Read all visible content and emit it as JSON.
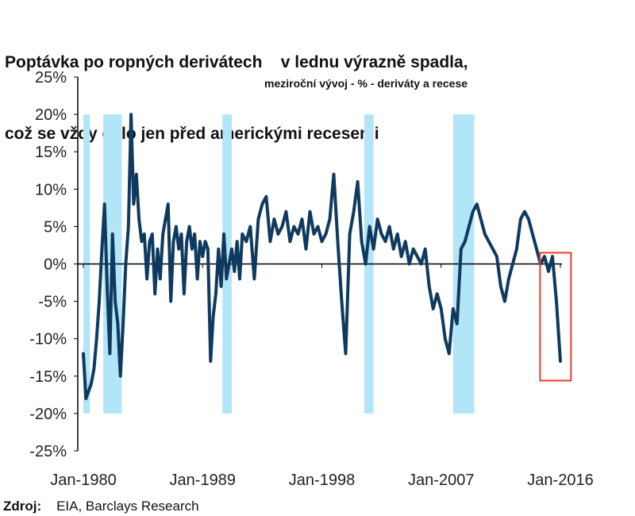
{
  "title_line1": "Poptávka po ropných derivátech    v lednu výrazně spadla,",
  "title_line2": "což se vždy dělo jen před americkými recesemi",
  "source_label": "Zdroj:",
  "source_text": "EIA, Barclays Research",
  "colors": {
    "line": "#0f3a5f",
    "recession": "#b3e5f8",
    "highlight_box": "#e8402a",
    "axis": "#000000"
  },
  "chart_data": {
    "type": "line",
    "title": "Poptávka po ropných derivátech v lednu výrazně spadla, což se vždy dělo jen před americkými recesemi",
    "annotation": "meziroční vývoj - % - deriváty  a recese",
    "xlabel": "",
    "ylabel": "",
    "ylim": [
      -25,
      25
    ],
    "yticks": [
      25,
      20,
      15,
      10,
      5,
      0,
      -5,
      -10,
      -15,
      -20,
      -25
    ],
    "ytick_labels": [
      "25%",
      "20%",
      "15%",
      "10%",
      "5%",
      "0%",
      "-5%",
      "-10%",
      "-15%",
      "-20%",
      "-25%"
    ],
    "xlim": [
      1979.95,
      2016.3
    ],
    "xticks": [
      1980,
      1989,
      1998,
      2007,
      2016
    ],
    "xtick_labels": [
      "Jan-1980",
      "Jan-1989",
      "Jan-1998",
      "Jan-2007",
      "Jan-2016"
    ],
    "grid": false,
    "legend": "none",
    "recessions": [
      [
        1980.0,
        1980.5
      ],
      [
        1981.5,
        1982.9
      ],
      [
        1990.5,
        1991.2
      ],
      [
        2001.2,
        2001.9
      ],
      [
        2007.9,
        2009.5
      ]
    ],
    "highlight_range": {
      "x": [
        2015.9,
        2018.1
      ],
      "y": [
        -15.6,
        1.5
      ]
    },
    "series": [
      {
        "x": [
          1980.0,
          1980.2,
          1980.4,
          1980.6,
          1980.8,
          1981.0,
          1981.2,
          1981.4,
          1981.6,
          1981.8,
          1982.0,
          1982.2,
          1982.4,
          1982.6,
          1982.8,
          1983.0,
          1983.2,
          1983.4,
          1983.6,
          1983.8,
          1984.0,
          1984.2,
          1984.4,
          1984.6,
          1984.8,
          1985.0,
          1985.2,
          1985.4,
          1985.6,
          1985.8,
          1986.0,
          1986.2,
          1986.4,
          1986.6,
          1986.8,
          1987.0,
          1987.2,
          1987.4,
          1987.6,
          1987.8,
          1988.0,
          1988.2,
          1988.4,
          1988.6,
          1988.8,
          1989.0,
          1989.2,
          1989.4,
          1989.6,
          1989.8,
          1990.0,
          1990.2,
          1990.4,
          1990.6,
          1990.8,
          1991.0,
          1991.2,
          1991.4,
          1991.6,
          1991.8,
          1992.0,
          1992.3,
          1992.6,
          1992.9,
          1993.2,
          1993.5,
          1993.8,
          1994.1,
          1994.4,
          1994.7,
          1995.0,
          1995.3,
          1995.6,
          1995.9,
          1996.2,
          1996.5,
          1996.8,
          1997.1,
          1997.4,
          1997.7,
          1998.0,
          1998.3,
          1998.6,
          1998.9,
          1999.2,
          1999.5,
          1999.8,
          2000.1,
          2000.4,
          2000.7,
          2001.0,
          2001.3,
          2001.6,
          2001.9,
          2002.2,
          2002.5,
          2002.8,
          2003.1,
          2003.4,
          2003.7,
          2004.0,
          2004.3,
          2004.6,
          2004.9,
          2005.2,
          2005.5,
          2005.8,
          2006.1,
          2006.4,
          2006.7,
          2007.0,
          2007.3,
          2007.6,
          2007.9,
          2008.2,
          2008.5,
          2008.8,
          2009.1,
          2009.4,
          2009.7,
          2010.0,
          2010.3,
          2010.6,
          2010.9,
          2011.2,
          2011.5,
          2011.8,
          2012.1,
          2012.4,
          2012.7,
          2013.0,
          2013.3,
          2013.6,
          2013.9,
          2014.2,
          2014.5,
          2014.8,
          2015.1,
          2015.4,
          2015.7,
          2016.0
        ],
        "values": [
          -12,
          -18,
          -17,
          -16,
          -14,
          -10,
          -5,
          2,
          8,
          -3,
          -12,
          4,
          -5,
          -8,
          -15,
          -8,
          0,
          5,
          20,
          8,
          12,
          6,
          3,
          4,
          -2,
          3,
          4,
          -4,
          2,
          -2,
          4,
          6,
          8,
          -5,
          3,
          5,
          2,
          4,
          -4,
          3,
          5,
          2,
          4,
          -2,
          3,
          1,
          3,
          2,
          -13,
          -7,
          -4,
          2,
          -3,
          4,
          -2,
          0,
          2,
          -1,
          3,
          -2,
          4,
          3,
          5,
          -2,
          6,
          8,
          9,
          3,
          6,
          4,
          5,
          7,
          3,
          5,
          4,
          6,
          2,
          7,
          4,
          5,
          3,
          4,
          6,
          12,
          3,
          -5,
          -12,
          4,
          7,
          11,
          3,
          0,
          5,
          2,
          6,
          4,
          3,
          5,
          2,
          4,
          1,
          3,
          0,
          2,
          1,
          0,
          2,
          -3,
          -6,
          -4,
          -6,
          -10,
          -12,
          -6,
          -8,
          2,
          3,
          5,
          7,
          8,
          6,
          4,
          3,
          2,
          1,
          -3,
          -5,
          -2,
          0,
          2,
          6,
          7,
          6,
          4,
          2,
          0,
          1,
          -1,
          1,
          -5,
          -13
        ],
        "highlight_from_index": 134
      }
    ]
  }
}
